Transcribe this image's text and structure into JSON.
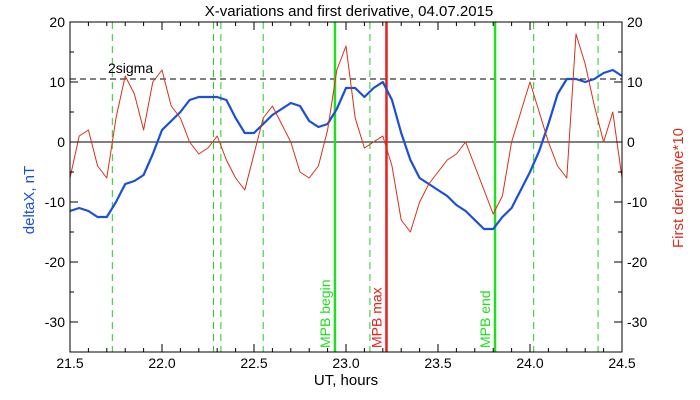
{
  "chart_data": {
    "type": "line",
    "title": "X-variations and first derivative, 04.07.2015",
    "xlabel": "UT, hours",
    "ylabel_left": "deltaX, nT",
    "ylabel_right": "First derivative*10",
    "xlim": [
      21.5,
      24.5
    ],
    "ylim": [
      -35,
      20
    ],
    "x_ticks": [
      "21.5",
      "22.0",
      "22.5",
      "23.0",
      "23.5",
      "24.0",
      "24.5"
    ],
    "y_ticks": [
      "-30",
      "-20",
      "-10",
      "0",
      "10",
      "20"
    ],
    "sigma_level": 10.5,
    "sigma_label": "2sigma",
    "colors": {
      "deltaX": "#1a4fd8",
      "derivative": "#d8301a",
      "mpb_begin_end": "#22dd22",
      "mpb_max": "#e8201a",
      "dashed_markers": "#22cc22"
    },
    "series": [
      {
        "name": "deltaX, nT",
        "x": [
          21.5,
          21.55,
          21.6,
          21.65,
          21.7,
          21.75,
          21.8,
          21.85,
          21.9,
          21.95,
          22.0,
          22.05,
          22.1,
          22.15,
          22.2,
          22.25,
          22.3,
          22.35,
          22.4,
          22.45,
          22.5,
          22.55,
          22.6,
          22.65,
          22.7,
          22.75,
          22.8,
          22.85,
          22.9,
          22.95,
          23.0,
          23.05,
          23.1,
          23.15,
          23.2,
          23.25,
          23.3,
          23.35,
          23.4,
          23.45,
          23.5,
          23.55,
          23.6,
          23.65,
          23.7,
          23.75,
          23.8,
          23.85,
          23.9,
          23.95,
          24.0,
          24.05,
          24.1,
          24.15,
          24.2,
          24.25,
          24.3,
          24.35,
          24.4,
          24.45,
          24.5
        ],
        "y": [
          -11.5,
          -11,
          -11.5,
          -12.5,
          -12.5,
          -10,
          -7,
          -6.5,
          -5.5,
          -2,
          2,
          3.5,
          5,
          7,
          7.5,
          7.5,
          7.5,
          7,
          4,
          1.5,
          1.5,
          3,
          4.5,
          5.5,
          6.5,
          6,
          3.5,
          2.5,
          3,
          5.5,
          9,
          9,
          7.5,
          9,
          10,
          7,
          1.5,
          -3,
          -6,
          -7,
          -8,
          -9,
          -10.5,
          -11.5,
          -13,
          -14.5,
          -14.5,
          -12.5,
          -11,
          -8,
          -5,
          -1.5,
          3,
          8,
          10.5,
          10.5,
          10,
          10.5,
          11.5,
          12,
          11
        ]
      },
      {
        "name": "First derivative*10",
        "x": [
          21.5,
          21.55,
          21.6,
          21.65,
          21.7,
          21.75,
          21.8,
          21.85,
          21.9,
          21.95,
          22.0,
          22.05,
          22.1,
          22.15,
          22.2,
          22.25,
          22.3,
          22.35,
          22.4,
          22.45,
          22.5,
          22.55,
          22.6,
          22.65,
          22.7,
          22.75,
          22.8,
          22.85,
          22.9,
          22.95,
          23.0,
          23.05,
          23.1,
          23.15,
          23.2,
          23.25,
          23.3,
          23.35,
          23.4,
          23.45,
          23.5,
          23.55,
          23.6,
          23.65,
          23.7,
          23.75,
          23.8,
          23.85,
          23.9,
          23.95,
          24.0,
          24.05,
          24.1,
          24.15,
          24.2,
          24.25,
          24.3,
          24.35,
          24.4,
          24.45,
          24.5
        ],
        "y": [
          -6,
          1,
          2,
          -4,
          -6,
          4,
          11,
          8,
          2,
          10,
          12,
          6,
          4,
          0,
          -2,
          -1,
          1,
          -3,
          -6,
          -8,
          -2,
          4,
          6,
          3,
          0,
          -5,
          -6,
          -4,
          2,
          12,
          16,
          4,
          -1,
          0,
          1,
          -4,
          -13,
          -15,
          -10,
          -7,
          -5,
          -3,
          -2,
          0,
          -4,
          -8,
          -12,
          -9,
          0,
          5,
          10,
          5,
          0,
          -4,
          -6,
          18,
          13,
          6,
          0,
          5,
          -6
        ]
      }
    ],
    "vertical_markers": {
      "dashed": [
        21.73,
        22.28,
        22.32,
        22.55,
        23.13,
        24.02,
        24.37
      ],
      "mpb_begin": {
        "x": 22.94,
        "label": "MPB begin"
      },
      "mpb_max": {
        "x": 23.22,
        "label": "MPB max"
      },
      "mpb_end": {
        "x": 23.81,
        "label": "MPB end"
      }
    },
    "grid": false
  }
}
